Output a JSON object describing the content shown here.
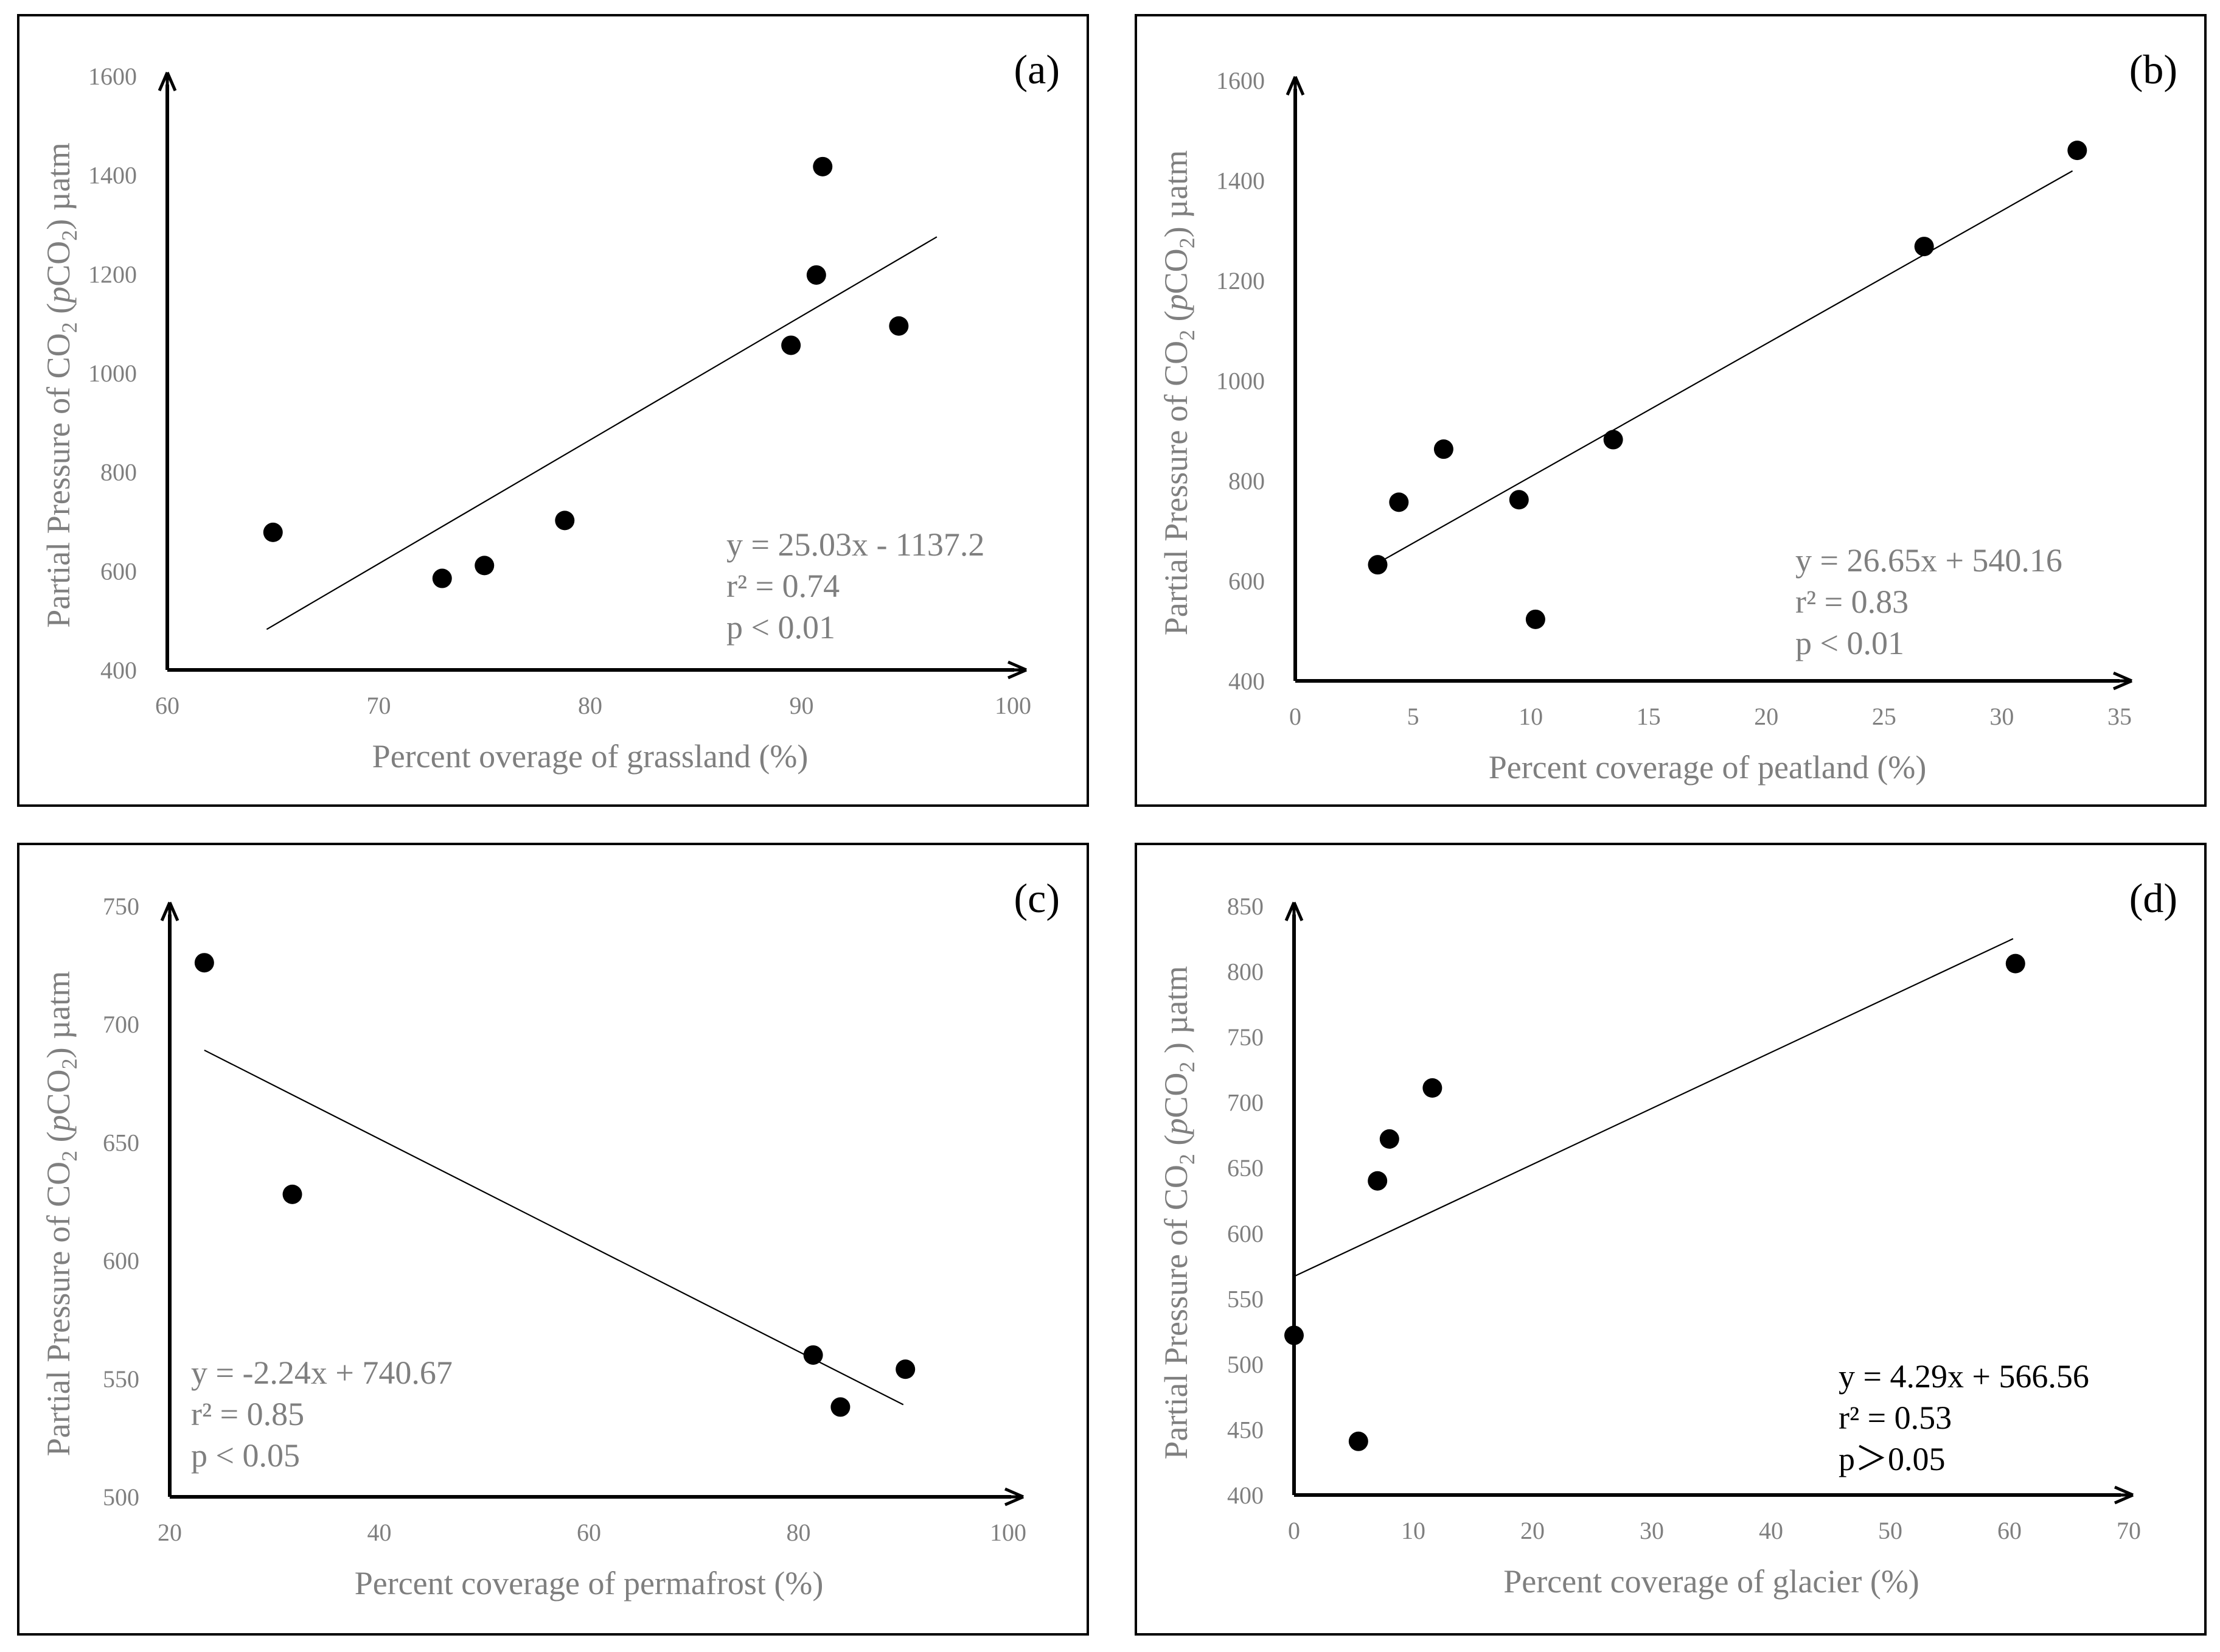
{
  "chart_data": [
    {
      "type": "scatter",
      "panel_label": "(a)",
      "xlabel": "Percent overage of grassland (%)",
      "ylabel_parts": [
        "Partial Pressure of CO",
        "2",
        " (",
        "p",
        "CO",
        "2",
        ") µatm"
      ],
      "xlim": [
        60,
        100
      ],
      "ylim": [
        400,
        1600
      ],
      "xticks": [
        60,
        70,
        80,
        90,
        100
      ],
      "yticks": [
        400,
        600,
        800,
        1000,
        1200,
        1400,
        1600
      ],
      "points": [
        [
          65,
          678
        ],
        [
          73,
          585
        ],
        [
          75,
          611
        ],
        [
          78.8,
          702
        ],
        [
          89.5,
          1056
        ],
        [
          90.7,
          1198
        ],
        [
          91,
          1417
        ],
        [
          94.6,
          1095
        ]
      ],
      "trendline": {
        "x": [
          64.7,
          96.4
        ],
        "y": [
          482,
          1275
        ]
      },
      "equation_lines": [
        "y = 25.03x - 1137.2",
        "r² = 0.74",
        "p < 0.01"
      ],
      "equation_color": "#7f7f7f"
    },
    {
      "type": "scatter",
      "panel_label": "(b)",
      "xlabel": "Percent coverage of peatland (%)",
      "ylabel_parts": [
        "Partial Pressure of CO",
        "2",
        " (",
        "p",
        "CO",
        "2",
        ") µatm"
      ],
      "xlim": [
        0,
        35
      ],
      "ylim": [
        400,
        1600
      ],
      "xticks": [
        0,
        5,
        10,
        15,
        20,
        25,
        30,
        35
      ],
      "yticks": [
        400,
        600,
        800,
        1000,
        1200,
        1400,
        1600
      ],
      "points": [
        [
          3.5,
          632
        ],
        [
          4.4,
          757
        ],
        [
          6.3,
          863
        ],
        [
          9.5,
          762
        ],
        [
          10.2,
          523
        ],
        [
          13.5,
          882
        ],
        [
          26.7,
          1268
        ],
        [
          33.2,
          1460
        ]
      ],
      "trendline": {
        "x": [
          3.3,
          33
        ],
        "y": [
          630,
          1419
        ]
      },
      "equation_lines": [
        "y = 26.65x + 540.16",
        "r² = 0.83",
        "p < 0.01"
      ],
      "equation_color": "#7f7f7f"
    },
    {
      "type": "scatter",
      "panel_label": "(c)",
      "xlabel": "Percent coverage of permafrost (%)",
      "ylabel_parts": [
        "Partial Pressure of CO",
        "2",
        " (",
        "p",
        "CO",
        "2",
        ") µatm"
      ],
      "xlim": [
        20,
        100
      ],
      "ylim": [
        500,
        750
      ],
      "xticks": [
        20,
        40,
        60,
        80,
        100
      ],
      "yticks": [
        500,
        550,
        600,
        650,
        700,
        750
      ],
      "points": [
        [
          23.3,
          726
        ],
        [
          31.7,
          628
        ],
        [
          81.4,
          560
        ],
        [
          84,
          538
        ],
        [
          90.2,
          554
        ]
      ],
      "trendline": {
        "x": [
          23.3,
          90
        ],
        "y": [
          689,
          539
        ]
      },
      "equation_lines": [
        "y = -2.24x + 740.67",
        "r² = 0.85",
        "p < 0.05"
      ],
      "equation_color": "#7f7f7f"
    },
    {
      "type": "scatter",
      "panel_label": "(d)",
      "xlabel": "Percent coverage of glacier (%)",
      "ylabel_parts": [
        "Partial Pressure of CO",
        "2",
        " (",
        "p",
        "CO",
        "2",
        " ) µatm"
      ],
      "xlim": [
        0,
        70
      ],
      "ylim": [
        400,
        850
      ],
      "xticks": [
        0,
        10,
        20,
        30,
        40,
        50,
        60,
        70
      ],
      "yticks": [
        400,
        450,
        500,
        550,
        600,
        650,
        700,
        750,
        800,
        850
      ],
      "points": [
        [
          0,
          522
        ],
        [
          5.4,
          441
        ],
        [
          7,
          640
        ],
        [
          8,
          672
        ],
        [
          11.6,
          711
        ],
        [
          60.5,
          806
        ]
      ],
      "trendline": {
        "x": [
          0,
          60.3
        ],
        "y": [
          567,
          825
        ]
      },
      "equation_lines": [
        "y = 4.29x + 566.56",
        "r² = 0.53",
        "p＞0.05"
      ],
      "equation_color": "#000000"
    }
  ]
}
